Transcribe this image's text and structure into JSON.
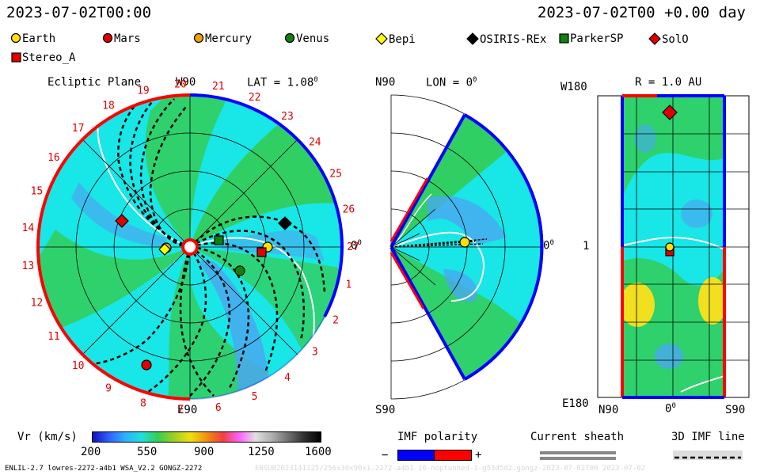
{
  "header": {
    "date_left": "2023-07-02T00:00",
    "date_right": "2023-07-02T00  +0.00 day"
  },
  "legend": {
    "items": [
      {
        "label": "Earth",
        "color": "#ffe000",
        "shape": "circle"
      },
      {
        "label": "Mars",
        "color": "#e00000",
        "shape": "circle"
      },
      {
        "label": "Mercury",
        "color": "#f0a000",
        "shape": "circle"
      },
      {
        "label": "Venus",
        "color": "#108010",
        "shape": "circle"
      },
      {
        "label": "Bepi",
        "color": "#ffff00",
        "shape": "diamond"
      },
      {
        "label": "OSIRIS-REx",
        "color": "#000000",
        "shape": "diamond"
      },
      {
        "label": "ParkerSP",
        "color": "#108010",
        "shape": "square"
      },
      {
        "label": "SolO",
        "color": "#e00000",
        "shape": "diamond"
      },
      {
        "label": "Stereo_A",
        "color": "#e00000",
        "shape": "square"
      }
    ]
  },
  "panels": {
    "ecliptic": {
      "title": "Ecliptic Plane",
      "top_label": "W90",
      "bottom_label": "E90",
      "right_label": "0",
      "right_sup": "0",
      "lat_label": "LAT = 1.08",
      "lat_sup": "0",
      "carrington_numbers": [
        "1",
        "2",
        "3",
        "4",
        "5",
        "6",
        "7",
        "8",
        "9",
        "10",
        "11",
        "12",
        "13",
        "14",
        "15",
        "16",
        "17",
        "18",
        "19",
        "20",
        "21",
        "22",
        "23",
        "24",
        "25",
        "26",
        "27"
      ]
    },
    "meridional": {
      "title": "LON = 0",
      "title_sup": "0",
      "top_label": "N90",
      "bottom_label": "S90",
      "right_label": "0",
      "right_sup": "0"
    },
    "radial": {
      "title": "R = 1.0 AU",
      "top_label": "W180",
      "bottom_label": "E180",
      "mid_label": "1",
      "x_left": "N90",
      "x_mid": "0",
      "x_mid_sup": "0",
      "x_right": "S90"
    }
  },
  "colorbar": {
    "label": "Vr (km/s)",
    "ticks": [
      "200",
      "550",
      "900",
      "1250",
      "1600"
    ],
    "stops": [
      "#1010c0",
      "#3060ff",
      "#30b0ff",
      "#20e0e0",
      "#30d050",
      "#a0d020",
      "#f0e010",
      "#f09010",
      "#f04040",
      "#ff60ff",
      "#e0e0e0",
      "#b0b0b0",
      "#707070",
      "#303030",
      "#000000"
    ]
  },
  "imf": {
    "title": "IMF polarity",
    "minus": "−",
    "plus": "+",
    "neg_color": "#0000ff",
    "pos_color": "#ff0000"
  },
  "sheath": {
    "title": "Current sheath"
  },
  "imfline": {
    "title": "3D IMF line"
  },
  "footer": {
    "left": "ENLIL-2.7 lowres-2272-a4b1 WSA_V2.2 GONGZ-2272",
    "right": "ENSUB2023141125/256x30x90x1.2272-a4b1.16-noptunned-1-g53d5d2.gongz-2023-07-02T00    2023-07-02"
  },
  "colors": {
    "sw_cyan": "#19e6e6",
    "sw_green": "#33cc55",
    "sw_blue": "#4aa8f0",
    "sw_yellow": "#f0e020",
    "pol_pos": "#ff0000",
    "pol_neg": "#0000ff"
  }
}
